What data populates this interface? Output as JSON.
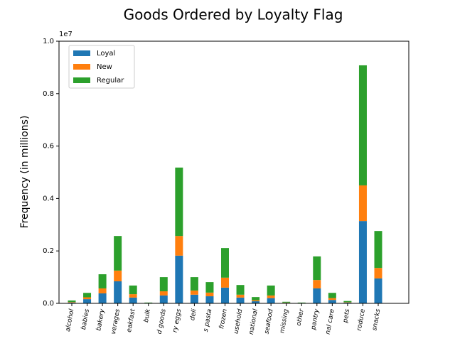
{
  "chart_data": {
    "type": "stacked_bar",
    "title": "Goods Ordered by Loyalty Flag",
    "y_label": "Frequency (in millions)",
    "y_offset_label": "1e7",
    "categories": [
      "alcohol",
      "babies",
      "bakery",
      "verages",
      "eakfast",
      "bulk",
      "d goods",
      "ry eggs",
      "deli",
      "s pasta",
      "frozen",
      "usehold",
      "national",
      "seafood",
      "missing",
      "other",
      "pantry",
      "nal care",
      "pets",
      "roduce",
      "snacks"
    ],
    "series": [
      {
        "name": "Loyal",
        "color": "#1f77b4",
        "values": [
          0.003,
          0.016,
          0.038,
          0.084,
          0.022,
          0.001,
          0.03,
          0.182,
          0.033,
          0.027,
          0.06,
          0.022,
          0.008,
          0.02,
          0.002,
          0.001,
          0.057,
          0.013,
          0.003,
          0.314,
          0.095
        ]
      },
      {
        "name": "New",
        "color": "#ff7f0e",
        "values": [
          0.002,
          0.007,
          0.019,
          0.041,
          0.013,
          0.0005,
          0.016,
          0.075,
          0.016,
          0.014,
          0.038,
          0.011,
          0.004,
          0.01,
          0.001,
          0.0005,
          0.032,
          0.007,
          0.0015,
          0.136,
          0.04
        ]
      },
      {
        "name": "Regular",
        "color": "#2ca02c",
        "values": [
          0.006,
          0.017,
          0.054,
          0.132,
          0.033,
          0.0015,
          0.054,
          0.261,
          0.051,
          0.04,
          0.113,
          0.037,
          0.012,
          0.038,
          0.003,
          0.0015,
          0.09,
          0.02,
          0.0045,
          0.458,
          0.141
        ]
      }
    ],
    "ylim": [
      0,
      1.0
    ],
    "yticks": [
      {
        "value": 0,
        "label": "0.0"
      },
      0.2,
      0.4,
      0.6,
      0.8,
      {
        "value": 1.0,
        "label": "1.0"
      }
    ],
    "legend": "upper left"
  }
}
